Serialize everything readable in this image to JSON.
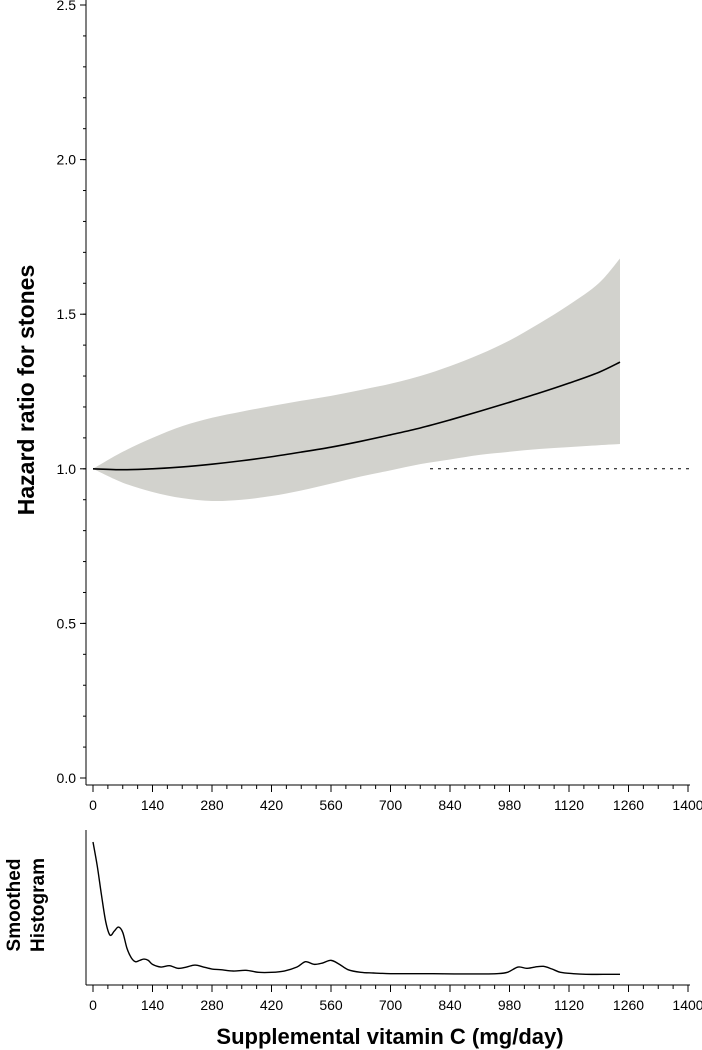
{
  "chart_data": [
    {
      "type": "line",
      "ylabel": "Hazard ratio for stones",
      "xlim": [
        0,
        1400
      ],
      "ylim": [
        0,
        2.5
      ],
      "x_ticks": [
        "0",
        "140",
        "280",
        "420",
        "560",
        "700",
        "840",
        "980",
        "1120",
        "1260",
        "1400"
      ],
      "y_ticks": [
        "0.0",
        "0.5",
        "1.0",
        "1.5",
        "2.0",
        "2.5"
      ],
      "reference_line": 1.0,
      "series": [
        {
          "x": [
            0,
            70,
            140,
            210,
            280,
            350,
            420,
            490,
            560,
            630,
            700,
            770,
            840,
            910,
            980,
            1050,
            1120,
            1190,
            1240
          ],
          "values": [
            1.0,
            0.997,
            1.0,
            1.006,
            1.015,
            1.026,
            1.039,
            1.054,
            1.07,
            1.089,
            1.11,
            1.132,
            1.158,
            1.186,
            1.215,
            1.245,
            1.277,
            1.312,
            1.345
          ],
          "ci_upper": [
            1.0,
            1.055,
            1.1,
            1.138,
            1.165,
            1.185,
            1.203,
            1.22,
            1.236,
            1.255,
            1.275,
            1.3,
            1.332,
            1.37,
            1.415,
            1.47,
            1.53,
            1.6,
            1.68
          ],
          "ci_lower": [
            1.0,
            0.955,
            0.925,
            0.905,
            0.896,
            0.9,
            0.912,
            0.93,
            0.952,
            0.975,
            0.995,
            1.015,
            1.03,
            1.045,
            1.055,
            1.064,
            1.07,
            1.076,
            1.08
          ]
        }
      ],
      "colors": {
        "ci_band": "#d2d2cd",
        "line": "#000000"
      }
    },
    {
      "type": "line",
      "ylabel": "Smoothed Histogram",
      "xlabel": "Supplemental vitamin C (mg/day)",
      "xlim": [
        0,
        1400
      ],
      "x_ticks": [
        "0",
        "140",
        "280",
        "420",
        "560",
        "700",
        "840",
        "980",
        "1120",
        "1260",
        "1400"
      ],
      "series": [
        {
          "x": [
            0,
            10,
            20,
            30,
            40,
            50,
            60,
            70,
            80,
            90,
            100,
            110,
            120,
            130,
            140,
            160,
            180,
            200,
            220,
            240,
            260,
            280,
            300,
            330,
            360,
            390,
            420,
            450,
            480,
            500,
            520,
            540,
            560,
            580,
            600,
            630,
            660,
            700,
            750,
            800,
            850,
            900,
            950,
            975,
            1000,
            1020,
            1040,
            1060,
            1080,
            1100,
            1130,
            1160,
            1200,
            1240
          ],
          "values": [
            1.0,
            0.82,
            0.6,
            0.4,
            0.3,
            0.33,
            0.36,
            0.32,
            0.2,
            0.13,
            0.1,
            0.11,
            0.12,
            0.11,
            0.08,
            0.06,
            0.07,
            0.05,
            0.06,
            0.075,
            0.06,
            0.045,
            0.04,
            0.03,
            0.035,
            0.02,
            0.02,
            0.03,
            0.06,
            0.1,
            0.08,
            0.09,
            0.11,
            0.08,
            0.04,
            0.02,
            0.015,
            0.01,
            0.01,
            0.01,
            0.008,
            0.008,
            0.01,
            0.02,
            0.06,
            0.05,
            0.06,
            0.065,
            0.045,
            0.02,
            0.01,
            0.005,
            0.005,
            0.005
          ]
        }
      ]
    }
  ]
}
